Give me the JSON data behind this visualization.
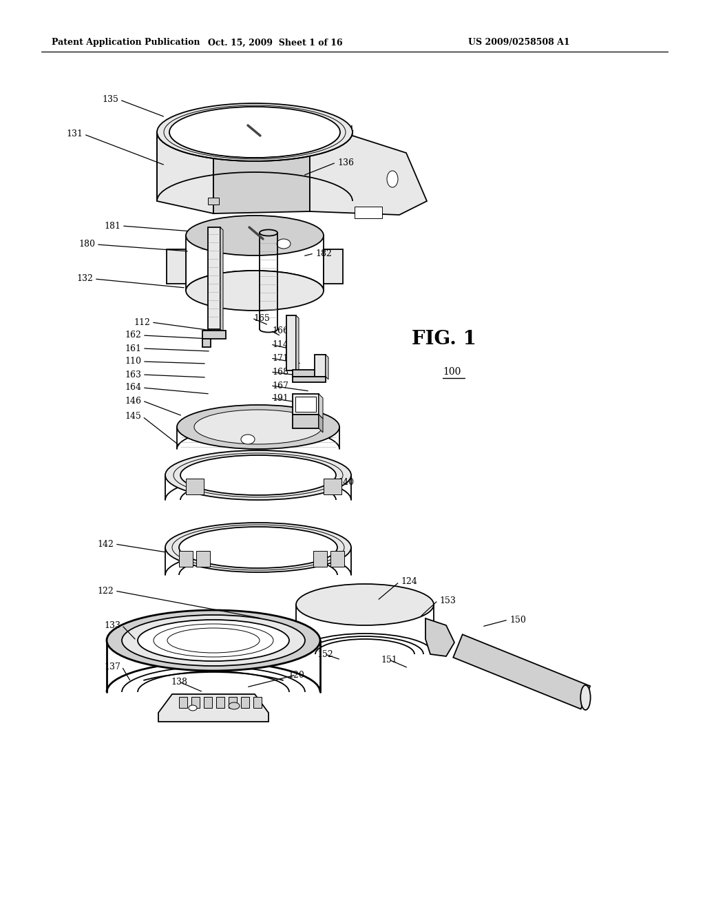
{
  "header_left": "Patent Application Publication",
  "header_center": "Oct. 15, 2009  Sheet 1 of 16",
  "header_right": "US 2009/0258508 A1",
  "fig_label": "FIG. 1",
  "background_color": "#ffffff",
  "line_color": "#000000",
  "lw": 1.3,
  "lw_thick": 2.0,
  "lw_thin": 0.7
}
